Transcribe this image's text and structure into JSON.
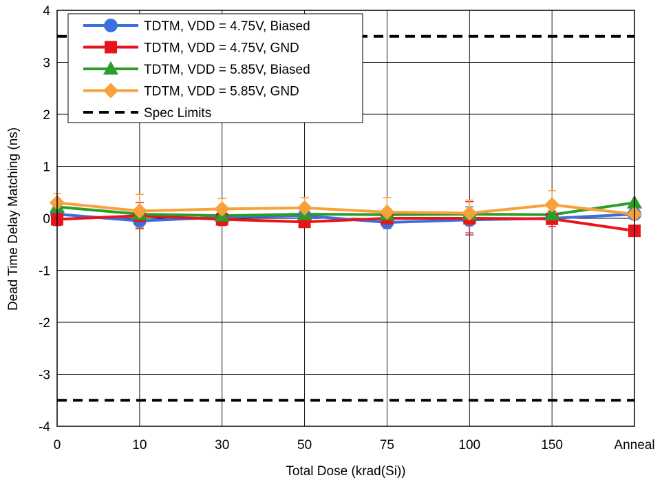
{
  "chart_data": {
    "type": "line",
    "title": "",
    "xlabel": "Total Dose (krad(Si))",
    "ylabel": "Dead Time Delay Matching (ns)",
    "categories": [
      "0",
      "10",
      "30",
      "50",
      "75",
      "100",
      "150",
      "Anneal"
    ],
    "ylim": [
      -4,
      4
    ],
    "yticks": [
      4,
      3,
      2,
      1,
      0,
      -1,
      -2,
      -3,
      -4
    ],
    "grid": true,
    "legend_position": "top-left",
    "series": [
      {
        "name": "TDTM, VDD = 4.75V, Biased",
        "color": "#3b6fe0",
        "marker": "circle",
        "values": [
          0.08,
          -0.05,
          0.02,
          0.05,
          -0.08,
          -0.03,
          0.0,
          0.08
        ],
        "error": [
          0.1,
          0.15,
          0.06,
          0.05,
          0.12,
          0.25,
          0.1,
          null
        ]
      },
      {
        "name": "TDTM, VDD = 4.75V, GND",
        "color": "#e8141b",
        "marker": "square",
        "values": [
          -0.02,
          0.05,
          -0.02,
          -0.07,
          0.0,
          0.0,
          -0.01,
          -0.24
        ],
        "error": [
          0.12,
          0.25,
          0.12,
          0.08,
          0.1,
          0.32,
          0.15,
          null
        ]
      },
      {
        "name": "TDTM, VDD = 5.85V, Biased",
        "color": "#2a9d2a",
        "marker": "triangle",
        "values": [
          0.22,
          0.08,
          0.05,
          0.08,
          0.07,
          0.08,
          0.07,
          0.3
        ],
        "error": [
          0.1,
          0.08,
          0.05,
          0.05,
          0.05,
          0.05,
          0.06,
          null
        ]
      },
      {
        "name": "TDTM, VDD = 5.85V, GND",
        "color": "#f7a13b",
        "marker": "diamond",
        "values": [
          0.3,
          0.14,
          0.18,
          0.2,
          0.12,
          0.1,
          0.26,
          0.08
        ],
        "error": [
          0.18,
          0.32,
          0.2,
          0.2,
          0.28,
          0.25,
          0.27,
          null
        ]
      }
    ],
    "reference_lines": {
      "name": "Spec Limits",
      "color": "#000000",
      "style": "dashed",
      "values": [
        3.5,
        -3.5
      ]
    }
  }
}
